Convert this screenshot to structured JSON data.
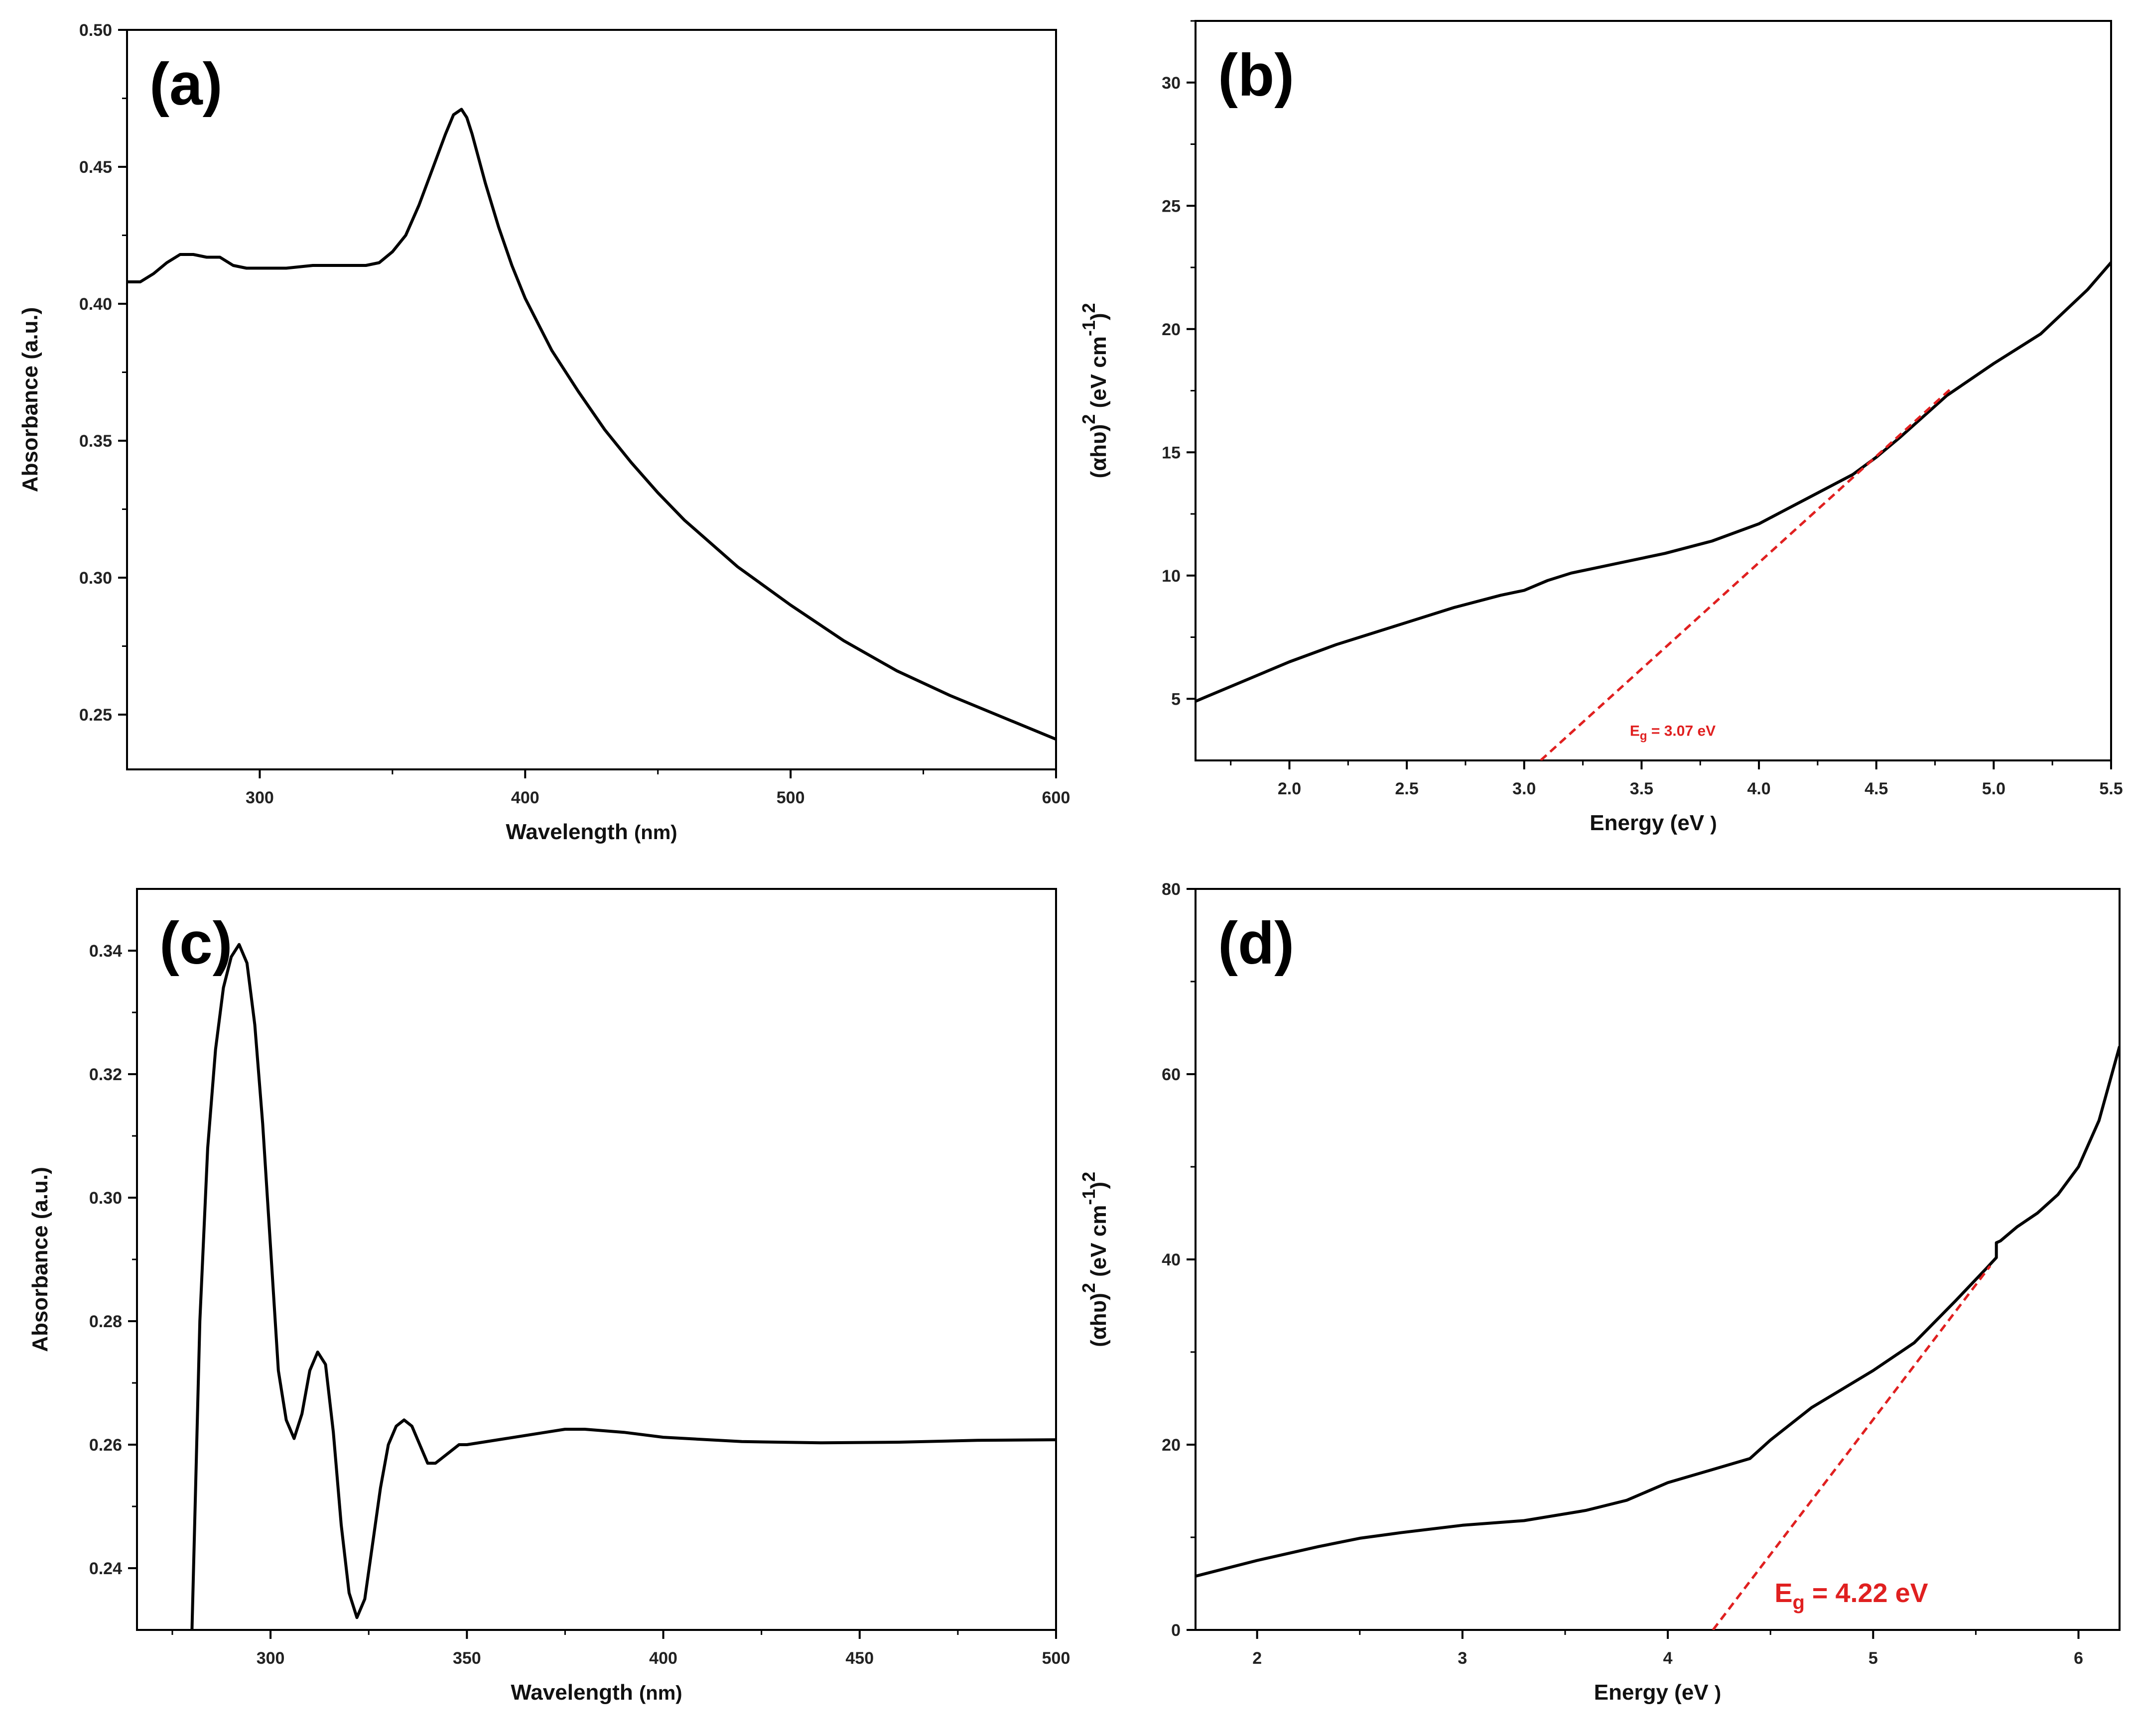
{
  "figure": {
    "background": "#ffffff",
    "curve_color": "#000000",
    "fit_color": "#e02020"
  },
  "chart_data": [
    {
      "id": "a",
      "type": "line",
      "panel_label": "(a)",
      "xlabel_main": "Wavelength",
      "xlabel_unit": "(nm)",
      "ylabel": "Absorbance (a.u.)",
      "xlim": [
        250,
        600
      ],
      "ylim": [
        0.23,
        0.5
      ],
      "xticks": [
        300,
        400,
        500,
        600
      ],
      "xtick_labels": [
        "300",
        "400",
        "500",
        "600"
      ],
      "yticks": [
        0.25,
        0.3,
        0.35,
        0.4,
        0.45,
        0.5
      ],
      "ytick_labels": [
        "0.25",
        "0.30",
        "0.35",
        "0.40",
        "0.45",
        "0.50"
      ],
      "series": [
        {
          "name": "absorbance",
          "x": [
            250,
            255,
            260,
            265,
            270,
            275,
            280,
            285,
            290,
            295,
            300,
            310,
            320,
            330,
            340,
            345,
            350,
            355,
            360,
            365,
            370,
            373,
            376,
            378,
            380,
            385,
            390,
            395,
            400,
            410,
            420,
            430,
            440,
            450,
            460,
            480,
            500,
            520,
            540,
            560,
            580,
            600
          ],
          "y": [
            0.408,
            0.408,
            0.411,
            0.415,
            0.418,
            0.418,
            0.417,
            0.417,
            0.414,
            0.413,
            0.413,
            0.413,
            0.414,
            0.414,
            0.414,
            0.415,
            0.419,
            0.425,
            0.436,
            0.449,
            0.462,
            0.469,
            0.471,
            0.468,
            0.462,
            0.444,
            0.428,
            0.414,
            0.402,
            0.383,
            0.368,
            0.354,
            0.342,
            0.331,
            0.321,
            0.304,
            0.29,
            0.277,
            0.266,
            0.257,
            0.249,
            0.241
          ]
        }
      ]
    },
    {
      "id": "b",
      "type": "line",
      "panel_label": "(b)",
      "xlabel_main": "Energy (eV",
      "xlabel_unit": ")",
      "ylabel_base": "(αhυ)",
      "ylabel_sup1": "2",
      "ylabel_mid": " (eV cm",
      "ylabel_sup2": "-1",
      "ylabel_end": ")",
      "ylabel_sup3": "2",
      "xlim": [
        1.6,
        5.5
      ],
      "ylim": [
        2.5,
        32.5
      ],
      "xticks": [
        2.0,
        2.5,
        3.0,
        3.5,
        4.0,
        4.5,
        5.0,
        5.5
      ],
      "xtick_labels": [
        "2.0",
        "2.5",
        "3.0",
        "3.5",
        "4.0",
        "4.5",
        "5.0",
        "5.5"
      ],
      "yticks": [
        5,
        10,
        15,
        20,
        25,
        30
      ],
      "ytick_labels": [
        "5",
        "10",
        "15",
        "20",
        "25",
        "30"
      ],
      "series": [
        {
          "name": "tauc",
          "x": [
            1.6,
            1.8,
            2.0,
            2.2,
            2.3,
            2.5,
            2.7,
            2.9,
            3.0,
            3.1,
            3.2,
            3.4,
            3.6,
            3.8,
            4.0,
            4.1,
            4.2,
            4.4,
            4.5,
            4.6,
            4.8,
            5.0,
            5.2,
            5.4,
            5.5
          ],
          "y": [
            4.9,
            5.7,
            6.5,
            7.2,
            7.5,
            8.1,
            8.7,
            9.2,
            9.4,
            9.8,
            10.1,
            10.5,
            10.9,
            11.4,
            12.1,
            12.6,
            13.1,
            14.1,
            14.8,
            15.6,
            17.3,
            18.6,
            19.8,
            21.6,
            22.7
          ]
        }
      ],
      "fit_line": {
        "x": [
          3.07,
          4.82
        ],
        "y": [
          2.5,
          17.6
        ],
        "style": "dashed"
      },
      "eg_label_main": "E",
      "eg_label_sub": "g",
      "eg_label_value": " = 3.07 eV",
      "eg_label_pos": [
        3.45,
        3.5
      ]
    },
    {
      "id": "c",
      "type": "line",
      "panel_label": "(c)",
      "xlabel_main": "Wavelength",
      "xlabel_unit": "(nm)",
      "ylabel": "Absorbance (a.u.)",
      "xlim": [
        266,
        500
      ],
      "ylim": [
        0.23,
        0.35
      ],
      "xticks": [
        300,
        350,
        400,
        450,
        500
      ],
      "xtick_labels": [
        "300",
        "350",
        "400",
        "450",
        "500"
      ],
      "yticks": [
        0.24,
        0.26,
        0.28,
        0.3,
        0.32,
        0.34
      ],
      "ytick_labels": [
        "0.24",
        "0.26",
        "0.28",
        "0.30",
        "0.32",
        "0.34"
      ],
      "series": [
        {
          "name": "absorbance",
          "x": [
            280,
            282,
            284,
            286,
            288,
            290,
            292,
            294,
            296,
            298,
            300,
            302,
            304,
            306,
            308,
            310,
            312,
            314,
            316,
            318,
            320,
            322,
            324,
            326,
            328,
            330,
            332,
            334,
            336,
            338,
            340,
            342,
            344,
            346,
            348,
            350,
            360,
            370,
            375,
            380,
            390,
            400,
            420,
            440,
            460,
            480,
            500
          ],
          "y": [
            0.23,
            0.28,
            0.308,
            0.324,
            0.334,
            0.339,
            0.341,
            0.338,
            0.328,
            0.312,
            0.292,
            0.272,
            0.264,
            0.261,
            0.265,
            0.272,
            0.275,
            0.273,
            0.262,
            0.247,
            0.236,
            0.232,
            0.235,
            0.244,
            0.253,
            0.26,
            0.263,
            0.264,
            0.263,
            0.26,
            0.257,
            0.257,
            0.258,
            0.259,
            0.26,
            0.26,
            0.261,
            0.262,
            0.2625,
            0.2625,
            0.262,
            0.2612,
            0.2605,
            0.2603,
            0.2604,
            0.2607,
            0.2608
          ]
        }
      ]
    },
    {
      "id": "d",
      "type": "line",
      "panel_label": "(d)",
      "xlabel_main": "Energy (eV",
      "xlabel_unit": ")",
      "ylabel_base": "(αhυ)",
      "ylabel_sup1": "2",
      "ylabel_mid": " (eV cm",
      "ylabel_sup2": "-1",
      "ylabel_end": ")",
      "ylabel_sup3": "2",
      "xlim": [
        1.7,
        6.2
      ],
      "ylim": [
        0,
        80
      ],
      "xticks": [
        2,
        3,
        4,
        5,
        6
      ],
      "xtick_labels": [
        "2",
        "3",
        "4",
        "5",
        "6"
      ],
      "yticks": [
        0,
        20,
        40,
        60,
        80
      ],
      "ytick_labels": [
        "0",
        "20",
        "40",
        "60",
        "80"
      ],
      "series": [
        {
          "name": "tauc",
          "x": [
            1.7,
            2.0,
            2.3,
            2.5,
            2.7,
            3.0,
            3.3,
            3.6,
            3.8,
            4.0,
            4.2,
            4.4,
            4.5,
            4.7,
            5.0,
            5.2,
            5.4,
            5.55,
            5.6,
            5.6,
            5.62,
            5.7,
            5.8,
            5.9,
            6.0,
            6.1,
            6.2
          ],
          "y": [
            5.8,
            7.5,
            9.0,
            9.9,
            10.5,
            11.3,
            11.8,
            12.9,
            14.0,
            15.9,
            17.2,
            18.5,
            20.5,
            24.0,
            28.0,
            31.0,
            35.5,
            39.0,
            40.2,
            41.8,
            42.0,
            43.5,
            45.0,
            47.0,
            50.0,
            55.0,
            63.0
          ]
        }
      ],
      "fit_line": {
        "x": [
          4.22,
          5.57
        ],
        "y": [
          0,
          39.3
        ],
        "style": "dashed"
      },
      "eg_label_main": "E",
      "eg_label_sub": "g",
      "eg_label_value": " = 4.22 eV",
      "eg_label_pos": [
        4.52,
        3.0
      ]
    }
  ]
}
